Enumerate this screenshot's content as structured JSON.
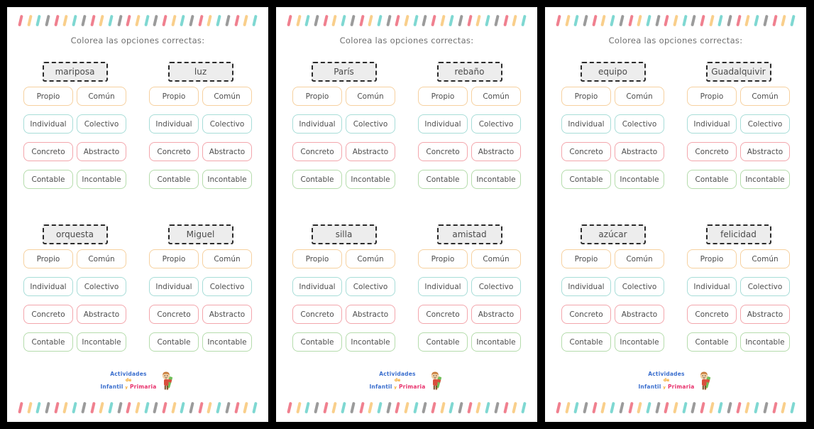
{
  "colors": {
    "background": "#000000",
    "page_bg": "#ffffff",
    "title_text": "#6f6f6f",
    "word_text": "#4a4a4a",
    "option_text": "#4d4d4d",
    "word_card_bg": "#ededed",
    "word_card_border": "#2b2b2b",
    "dash_pattern": [
      "#f0808f",
      "#f9cf8b",
      "#7fd8d2",
      "#9b9b9b"
    ]
  },
  "worksheet": {
    "title": "Colorea las opciones correctas:",
    "dashes_per_row": 27,
    "option_rows": [
      {
        "left": "Propio",
        "right": "Común",
        "border_color": "#f6d1a0"
      },
      {
        "left": "Individual",
        "right": "Colectivo",
        "border_color": "#a8ddd8"
      },
      {
        "left": "Concreto",
        "right": "Abstracto",
        "border_color": "#f3a6ac"
      },
      {
        "left": "Contable",
        "right": "Incontable",
        "border_color": "#b5dcac"
      }
    ],
    "pages": [
      {
        "words": [
          "mariposa",
          "luz",
          "orquesta",
          "Miguel"
        ]
      },
      {
        "words": [
          "París",
          "rebaño",
          "silla",
          "amistad"
        ]
      },
      {
        "words": [
          "equipo",
          "Guadalquivir",
          "azúcar",
          "felicidad"
        ]
      }
    ],
    "logo": {
      "line1": "Actividades",
      "line2": "de",
      "line3_part1": "Infantil",
      "line3_part2": "y",
      "line3_part3": "Primaria",
      "line1_color": "#3b6fce",
      "line2_color": "#f5a623",
      "part1_color": "#3b6fce",
      "part2_color": "#f5a623",
      "part3_color": "#e8336d"
    }
  }
}
